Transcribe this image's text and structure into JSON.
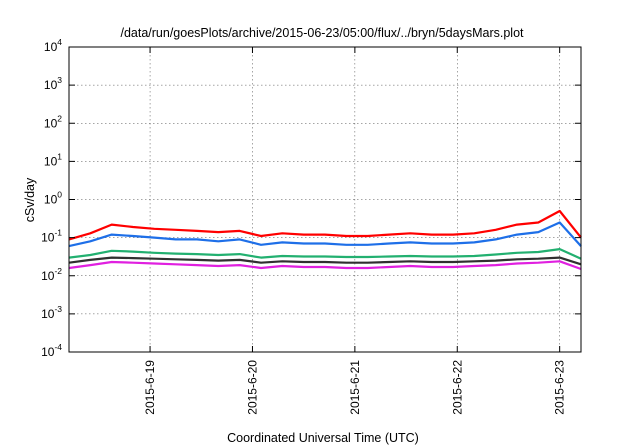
{
  "chart_data": {
    "type": "line",
    "title": "/data/run/goesPlots/archive/2015-06-23/05:00/flux/../bryn/5daysMars.plot",
    "xlabel": "Coordinated Universal Time (UTC)",
    "ylabel": "cSv/day",
    "yscale": "log",
    "ylim": [
      0.0001,
      10000
    ],
    "y_ticks": [
      {
        "base": "10",
        "exp": "-4",
        "value": 0.0001
      },
      {
        "base": "10",
        "exp": "-3",
        "value": 0.001
      },
      {
        "base": "10",
        "exp": "-2",
        "value": 0.01
      },
      {
        "base": "10",
        "exp": "-1",
        "value": 0.1
      },
      {
        "base": "10",
        "exp": "0",
        "value": 1
      },
      {
        "base": "10",
        "exp": "1",
        "value": 10
      },
      {
        "base": "10",
        "exp": "2",
        "value": 100
      },
      {
        "base": "10",
        "exp": "3",
        "value": 1000
      },
      {
        "base": "10",
        "exp": "4",
        "value": 10000
      }
    ],
    "xlim": [
      "2015-06-18 05:00",
      "2015-06-23 05:00"
    ],
    "x_ticks": [
      {
        "label": "2015-6-19",
        "time": "2015-06-19 00:00"
      },
      {
        "label": "2015-6-20",
        "time": "2015-06-20 00:00"
      },
      {
        "label": "2015-6-21",
        "time": "2015-06-21 00:00"
      },
      {
        "label": "2015-6-22",
        "time": "2015-06-22 00:00"
      },
      {
        "label": "2015-6-23",
        "time": "2015-06-23 00:00"
      }
    ],
    "grid": true,
    "legend": false,
    "series": [
      {
        "color": "#ff0000",
        "x": [
          "2015-06-18 05:00",
          "2015-06-18 10:00",
          "2015-06-18 15:00",
          "2015-06-18 20:00",
          "2015-06-19 01:00",
          "2015-06-19 06:00",
          "2015-06-19 11:00",
          "2015-06-19 16:00",
          "2015-06-19 21:00",
          "2015-06-20 02:00",
          "2015-06-20 07:00",
          "2015-06-20 12:00",
          "2015-06-20 17:00",
          "2015-06-20 22:00",
          "2015-06-21 03:00",
          "2015-06-21 08:00",
          "2015-06-21 13:00",
          "2015-06-21 18:00",
          "2015-06-21 23:00",
          "2015-06-22 04:00",
          "2015-06-22 09:00",
          "2015-06-22 14:00",
          "2015-06-22 19:00",
          "2015-06-23 00:00",
          "2015-06-23 05:00"
        ],
        "y": [
          0.09,
          0.13,
          0.22,
          0.19,
          0.17,
          0.16,
          0.15,
          0.14,
          0.15,
          0.11,
          0.13,
          0.12,
          0.12,
          0.11,
          0.11,
          0.12,
          0.13,
          0.12,
          0.12,
          0.13,
          0.16,
          0.22,
          0.25,
          0.5,
          0.1
        ]
      },
      {
        "color": "#1e6fe8",
        "x": [
          "2015-06-18 05:00",
          "2015-06-18 10:00",
          "2015-06-18 15:00",
          "2015-06-18 20:00",
          "2015-06-19 01:00",
          "2015-06-19 06:00",
          "2015-06-19 11:00",
          "2015-06-19 16:00",
          "2015-06-19 21:00",
          "2015-06-20 02:00",
          "2015-06-20 07:00",
          "2015-06-20 12:00",
          "2015-06-20 17:00",
          "2015-06-20 22:00",
          "2015-06-21 03:00",
          "2015-06-21 08:00",
          "2015-06-21 13:00",
          "2015-06-21 18:00",
          "2015-06-21 23:00",
          "2015-06-22 04:00",
          "2015-06-22 09:00",
          "2015-06-22 14:00",
          "2015-06-22 19:00",
          "2015-06-23 00:00",
          "2015-06-23 05:00"
        ],
        "y": [
          0.06,
          0.08,
          0.12,
          0.11,
          0.1,
          0.09,
          0.09,
          0.08,
          0.09,
          0.065,
          0.075,
          0.07,
          0.07,
          0.065,
          0.065,
          0.07,
          0.075,
          0.07,
          0.07,
          0.075,
          0.09,
          0.12,
          0.14,
          0.25,
          0.06
        ]
      },
      {
        "color": "#22b070",
        "x": [
          "2015-06-18 05:00",
          "2015-06-18 10:00",
          "2015-06-18 15:00",
          "2015-06-18 20:00",
          "2015-06-19 01:00",
          "2015-06-19 06:00",
          "2015-06-19 11:00",
          "2015-06-19 16:00",
          "2015-06-19 21:00",
          "2015-06-20 02:00",
          "2015-06-20 07:00",
          "2015-06-20 12:00",
          "2015-06-20 17:00",
          "2015-06-20 22:00",
          "2015-06-21 03:00",
          "2015-06-21 08:00",
          "2015-06-21 13:00",
          "2015-06-21 18:00",
          "2015-06-21 23:00",
          "2015-06-22 04:00",
          "2015-06-22 09:00",
          "2015-06-22 14:00",
          "2015-06-22 19:00",
          "2015-06-23 00:00",
          "2015-06-23 05:00"
        ],
        "y": [
          0.03,
          0.035,
          0.045,
          0.043,
          0.04,
          0.038,
          0.037,
          0.035,
          0.037,
          0.03,
          0.033,
          0.032,
          0.032,
          0.031,
          0.031,
          0.032,
          0.033,
          0.032,
          0.032,
          0.033,
          0.036,
          0.04,
          0.042,
          0.05,
          0.028
        ]
      },
      {
        "color": "#303030",
        "x": [
          "2015-06-18 05:00",
          "2015-06-18 10:00",
          "2015-06-18 15:00",
          "2015-06-18 20:00",
          "2015-06-19 01:00",
          "2015-06-19 06:00",
          "2015-06-19 11:00",
          "2015-06-19 16:00",
          "2015-06-19 21:00",
          "2015-06-20 02:00",
          "2015-06-20 07:00",
          "2015-06-20 12:00",
          "2015-06-20 17:00",
          "2015-06-20 22:00",
          "2015-06-21 03:00",
          "2015-06-21 08:00",
          "2015-06-21 13:00",
          "2015-06-21 18:00",
          "2015-06-21 23:00",
          "2015-06-22 04:00",
          "2015-06-22 09:00",
          "2015-06-22 14:00",
          "2015-06-22 19:00",
          "2015-06-23 00:00",
          "2015-06-23 05:00"
        ],
        "y": [
          0.022,
          0.026,
          0.03,
          0.029,
          0.028,
          0.027,
          0.026,
          0.025,
          0.026,
          0.022,
          0.024,
          0.023,
          0.023,
          0.022,
          0.022,
          0.023,
          0.024,
          0.023,
          0.023,
          0.024,
          0.025,
          0.027,
          0.028,
          0.03,
          0.02
        ]
      },
      {
        "color": "#e020e0",
        "x": [
          "2015-06-18 05:00",
          "2015-06-18 10:00",
          "2015-06-18 15:00",
          "2015-06-18 20:00",
          "2015-06-19 01:00",
          "2015-06-19 06:00",
          "2015-06-19 11:00",
          "2015-06-19 16:00",
          "2015-06-19 21:00",
          "2015-06-20 02:00",
          "2015-06-20 07:00",
          "2015-06-20 12:00",
          "2015-06-20 17:00",
          "2015-06-20 22:00",
          "2015-06-21 03:00",
          "2015-06-21 08:00",
          "2015-06-21 13:00",
          "2015-06-21 18:00",
          "2015-06-21 23:00",
          "2015-06-22 04:00",
          "2015-06-22 09:00",
          "2015-06-22 14:00",
          "2015-06-22 19:00",
          "2015-06-23 00:00",
          "2015-06-23 05:00"
        ],
        "y": [
          0.016,
          0.019,
          0.023,
          0.022,
          0.021,
          0.02,
          0.019,
          0.018,
          0.019,
          0.016,
          0.018,
          0.017,
          0.017,
          0.016,
          0.016,
          0.017,
          0.018,
          0.017,
          0.017,
          0.018,
          0.019,
          0.021,
          0.022,
          0.024,
          0.015
        ]
      }
    ]
  }
}
